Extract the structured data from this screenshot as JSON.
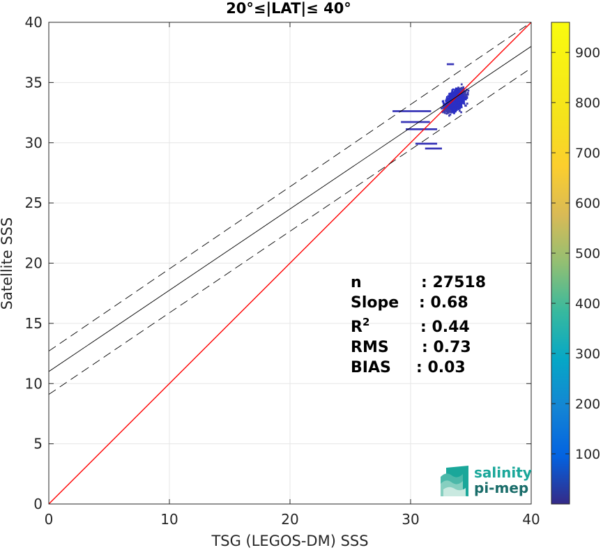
{
  "chart_data": {
    "type": "heatmap",
    "title": "20°≤|LAT|≤ 40°",
    "xlabel": "TSG (LEGOS-DM) SSS",
    "ylabel": "Satellite SSS",
    "xlim": [
      0,
      40
    ],
    "ylim": [
      0,
      40
    ],
    "xticks": [
      0,
      10,
      20,
      30,
      40
    ],
    "yticks": [
      0,
      5,
      10,
      15,
      20,
      25,
      30,
      35,
      40
    ],
    "grid": true,
    "lines": [
      {
        "name": "1:1 line",
        "style": "solid",
        "color": "#ff0000",
        "x": [
          0,
          40
        ],
        "y": [
          0,
          40
        ]
      },
      {
        "name": "regression fit",
        "style": "solid",
        "color": "#000000",
        "x": [
          0,
          40
        ],
        "y": [
          11.0,
          38.0
        ]
      },
      {
        "name": "upper bound",
        "style": "dashed",
        "color": "#000000",
        "x": [
          0,
          40
        ],
        "y": [
          12.7,
          40.0
        ]
      },
      {
        "name": "lower bound",
        "style": "dashed",
        "color": "#000000",
        "x": [
          0,
          40
        ],
        "y": [
          9.1,
          36.2
        ]
      }
    ],
    "density_cluster": {
      "x_range": [
        28.5,
        35.5
      ],
      "y_range": [
        29.5,
        37.6
      ],
      "x_center": 33.6,
      "y_center": 33.6
    },
    "colorbar": {
      "min": 0,
      "max": 960,
      "ticks": [
        100,
        200,
        300,
        400,
        500,
        600,
        700,
        800,
        900
      ],
      "colormap": "parula"
    },
    "stats": [
      {
        "label": "n",
        "value": ": 27518"
      },
      {
        "label": "Slope",
        "value": ": 0.68"
      },
      {
        "label": "R",
        "sup": "2",
        "value": ": 0.44"
      },
      {
        "label": "RMS",
        "value": ": 0.73"
      },
      {
        "label": "BIAS",
        "value": ": 0.03"
      }
    ]
  },
  "logo": {
    "line1": "salinity",
    "line2": "pi-mep"
  },
  "colors": {
    "one_to_one": "#ff0000",
    "fit": "#000000",
    "cluster": "#3a37b8"
  }
}
